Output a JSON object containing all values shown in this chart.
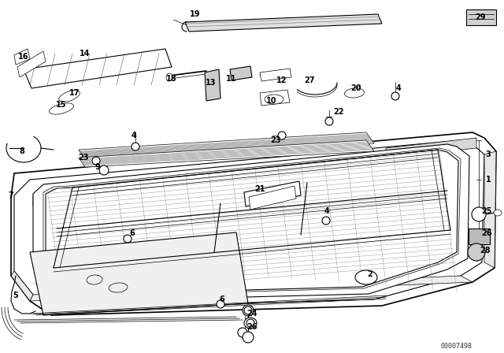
{
  "bg_color": "#ffffff",
  "line_color": "#000000",
  "watermark": "00007498",
  "label_fontsize": 7,
  "lw_thin": 0.5,
  "lw_med": 0.8,
  "lw_thick": 1.2,
  "labels": [
    [
      "19",
      248,
      18
    ],
    [
      "29",
      610,
      22
    ],
    [
      "18",
      218,
      100
    ],
    [
      "13",
      268,
      105
    ],
    [
      "11",
      294,
      100
    ],
    [
      "12",
      358,
      102
    ],
    [
      "27",
      393,
      102
    ],
    [
      "10",
      345,
      128
    ],
    [
      "20",
      452,
      112
    ],
    [
      "4",
      506,
      112
    ],
    [
      "22",
      430,
      142
    ],
    [
      "23",
      350,
      178
    ],
    [
      "14",
      108,
      68
    ],
    [
      "16",
      30,
      72
    ],
    [
      "17",
      95,
      118
    ],
    [
      "15",
      78,
      133
    ],
    [
      "8",
      28,
      192
    ],
    [
      "23",
      106,
      200
    ],
    [
      "9",
      124,
      212
    ],
    [
      "4",
      170,
      172
    ],
    [
      "7",
      14,
      248
    ],
    [
      "21",
      330,
      240
    ],
    [
      "4",
      415,
      268
    ],
    [
      "6",
      168,
      296
    ],
    [
      "3",
      620,
      196
    ],
    [
      "1",
      620,
      228
    ],
    [
      "25",
      618,
      268
    ],
    [
      "26",
      618,
      296
    ],
    [
      "28",
      616,
      318
    ],
    [
      "2",
      470,
      348
    ],
    [
      "5",
      20,
      375
    ],
    [
      "6",
      282,
      380
    ],
    [
      "24",
      320,
      398
    ],
    [
      "26",
      320,
      415
    ]
  ]
}
